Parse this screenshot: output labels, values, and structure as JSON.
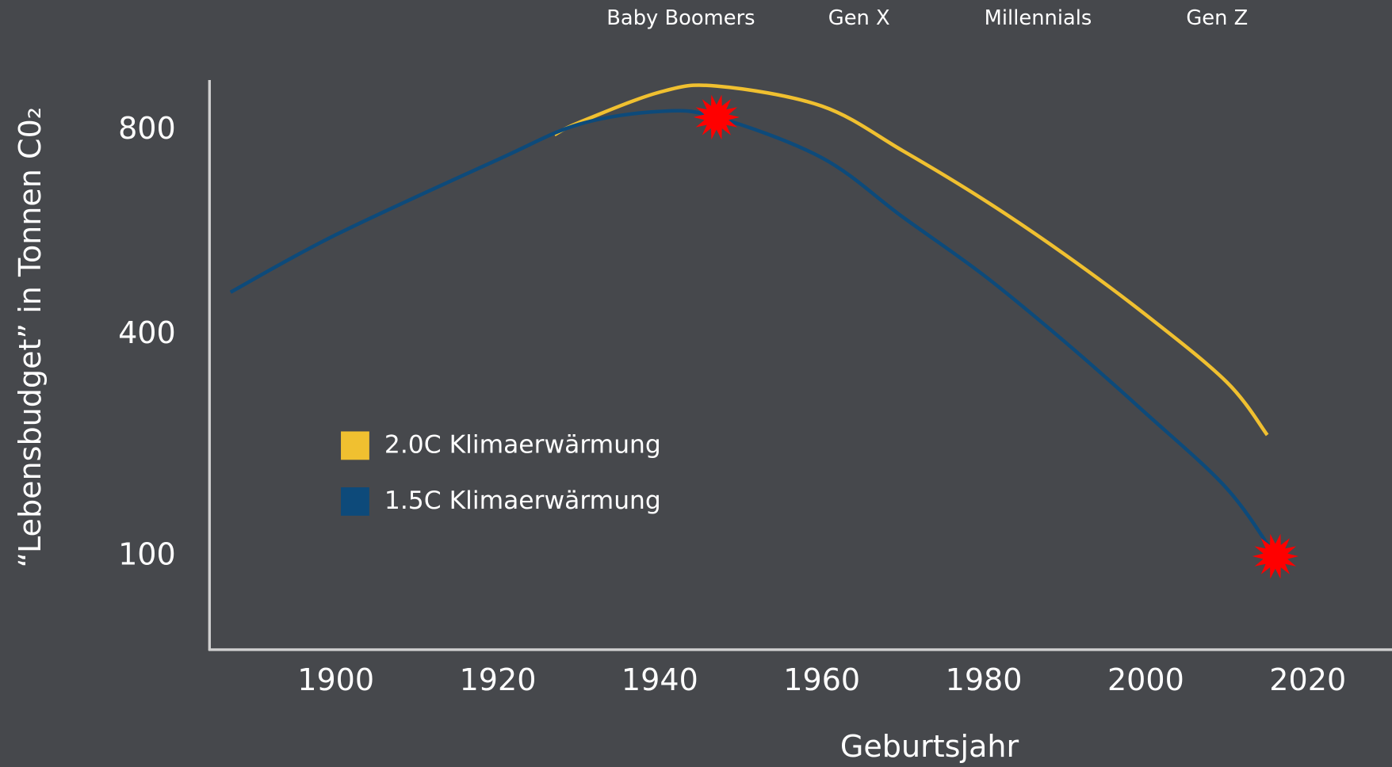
{
  "chart_data": {
    "type": "line",
    "x_label": "Geburtsjahr",
    "y_label": "“Lebensbudget” in Tonnen C0₂",
    "xlim": [
      1884.4,
      2030.4
    ],
    "xticks": [
      1900,
      1920,
      1940,
      1960,
      1980,
      2000,
      2020
    ],
    "ylim": [
      26,
      914
    ],
    "yticks": [
      100,
      400,
      800
    ],
    "yscale": "power",
    "yscale_exponent": 0.61,
    "grid": false,
    "legend": "left",
    "series": [
      {
        "name": "2.0C Klimaerwärmung",
        "color": "#f0c030",
        "x": [
          1927,
          1930,
          1940,
          1947,
          1960,
          1970,
          1980,
          1990,
          2000,
          2010,
          2015
        ],
        "values": [
          790,
          817,
          886,
          900,
          854,
          755,
          652,
          544,
          434,
          323,
          245
        ]
      },
      {
        "name": "1.5C Klimaerwärmung",
        "color": "#0d4a7a",
        "x": [
          1887,
          1900,
          1920,
          1930,
          1940,
          1947,
          1960,
          1970,
          1980,
          1990,
          2000,
          2010,
          2016
        ],
        "values": [
          474,
          582,
          736,
          813,
          842,
          829,
          740,
          617,
          505,
          388,
          276,
          175,
          100
        ]
      }
    ],
    "markers": {
      "color": "#ff0000",
      "x": [
        1947,
        2016
      ],
      "values": [
        829,
        100
      ]
    },
    "annotations": [
      {
        "text": "Baby Boomers",
        "x": 1942.6
      },
      {
        "text": "Gen X",
        "x": 1964.6
      },
      {
        "text": "Millennials",
        "x": 1986.7
      },
      {
        "text": "Gen Z",
        "x": 2008.8
      }
    ]
  }
}
